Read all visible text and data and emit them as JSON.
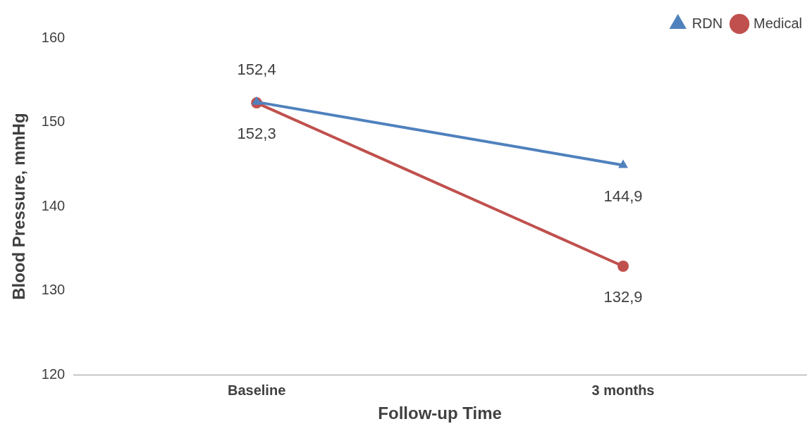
{
  "chart_data": {
    "type": "line",
    "xlabel": "Follow-up Time",
    "ylabel": "Blood Pressure, mmHg",
    "categories": [
      "Baseline",
      "3 months"
    ],
    "series": [
      {
        "name": "RDN",
        "color": "#4f81bd",
        "marker": "triangle",
        "values": [
          152.4,
          144.9
        ],
        "value_labels": [
          "152,4",
          "144,9"
        ]
      },
      {
        "name": "Medical",
        "color": "#c0504d",
        "marker": "circle",
        "values": [
          152.3,
          132.9
        ],
        "value_labels": [
          "152,3",
          "132,9"
        ]
      }
    ],
    "ylim": [
      120,
      160
    ],
    "yticks": [
      120,
      130,
      140,
      150,
      160
    ],
    "grid": false,
    "legend": "top right"
  }
}
